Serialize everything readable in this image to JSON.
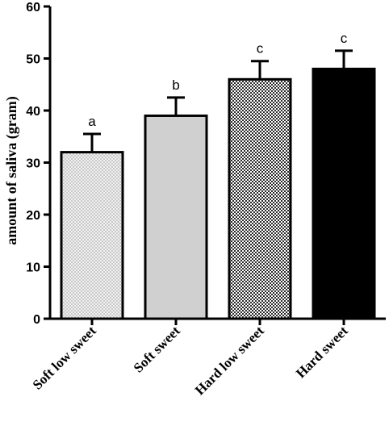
{
  "chart_data": {
    "type": "bar",
    "title": "",
    "xlabel": "",
    "ylabel": "amount of saliva (gram)",
    "ylim": [
      0,
      60
    ],
    "yticks": [
      0,
      10,
      20,
      30,
      40,
      50,
      60
    ],
    "categories": [
      "Soft low sweet",
      "Soft sweet",
      "Hard low sweet",
      "Hard sweet"
    ],
    "values": [
      32,
      39,
      46,
      48
    ],
    "errors": [
      3.5,
      3.5,
      3.5,
      3.5
    ],
    "significance": [
      "a",
      "b",
      "c",
      "c"
    ],
    "fills": [
      "light-dotted-pattern",
      "solid-light-gray",
      "dark-checker-pattern",
      "solid-black"
    ],
    "colors": {
      "light_gray": "#d0d0d0",
      "black": "#000000"
    },
    "grid": false,
    "legend": "none"
  }
}
